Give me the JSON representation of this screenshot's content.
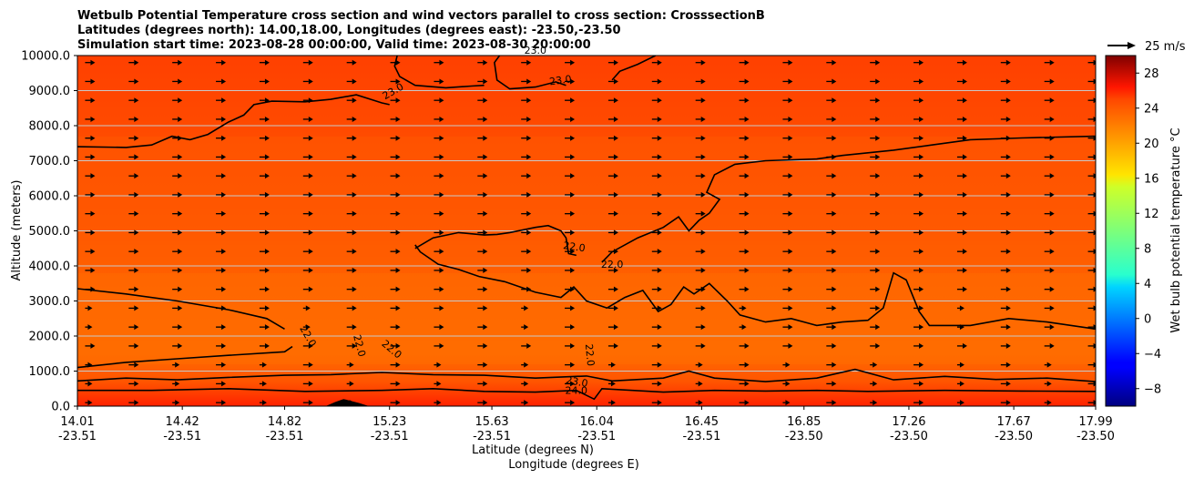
{
  "chart_data": {
    "type": "heatmap",
    "title": [
      "Wetbulb Potential Temperature cross section and wind vectors parallel to cross section: CrosssectionB",
      "Latitudes (degrees north): 14.00,18.00, Longitudes (degrees east): -23.50,-23.50",
      "Simulation start time: 2023-08-28 00:00:00, Valid time: 2023-08-30 20:00:00"
    ],
    "ylabel": "Altitude (meters)",
    "xlabel": "Latitude (degrees N)",
    "xlabel2": "Longitude (degrees E)",
    "ylim": [
      0,
      10000
    ],
    "yticks": [
      {
        "value": 0,
        "label": "0.0"
      },
      {
        "value": 1000,
        "label": "1000.0"
      },
      {
        "value": 2000,
        "label": "2000.0"
      },
      {
        "value": 3000,
        "label": "3000.0"
      },
      {
        "value": 4000,
        "label": "4000.0"
      },
      {
        "value": 5000,
        "label": "5000.0"
      },
      {
        "value": 6000,
        "label": "6000.0"
      },
      {
        "value": 7000,
        "label": "7000.0"
      },
      {
        "value": 8000,
        "label": "8000.0"
      },
      {
        "value": 9000,
        "label": "9000.0"
      },
      {
        "value": 10000,
        "label": "10000.0"
      }
    ],
    "xlim": [
      14.01,
      17.99
    ],
    "xticks": [
      {
        "lat": 14.01,
        "lat_label": "14.01",
        "lon_label": "-23.51"
      },
      {
        "lat": 14.42,
        "lat_label": "14.42",
        "lon_label": "-23.51"
      },
      {
        "lat": 14.82,
        "lat_label": "14.82",
        "lon_label": "-23.51"
      },
      {
        "lat": 15.23,
        "lat_label": "15.23",
        "lon_label": "-23.51"
      },
      {
        "lat": 15.63,
        "lat_label": "15.63",
        "lon_label": "-23.51"
      },
      {
        "lat": 16.04,
        "lat_label": "16.04",
        "lon_label": "-23.51"
      },
      {
        "lat": 16.45,
        "lat_label": "16.45",
        "lon_label": "-23.51"
      },
      {
        "lat": 16.85,
        "lat_label": "16.85",
        "lon_label": "-23.50"
      },
      {
        "lat": 17.26,
        "lat_label": "17.26",
        "lon_label": "-23.50"
      },
      {
        "lat": 17.67,
        "lat_label": "17.67",
        "lon_label": "-23.50"
      },
      {
        "lat": 17.99,
        "lat_label": "17.99",
        "lon_label": "-23.50"
      }
    ],
    "grid": "horizontal",
    "colorbar": {
      "label": "Wet bulb potential temperature °C",
      "range": [
        -10,
        30
      ],
      "ticks": [
        {
          "value": -8,
          "label": "−8"
        },
        {
          "value": -4,
          "label": "−4"
        },
        {
          "value": 0,
          "label": "0"
        },
        {
          "value": 4,
          "label": "4"
        },
        {
          "value": 8,
          "label": "8"
        },
        {
          "value": 12,
          "label": "12"
        },
        {
          "value": 16,
          "label": "16"
        },
        {
          "value": 20,
          "label": "20"
        },
        {
          "value": 24,
          "label": "24"
        },
        {
          "value": 28,
          "label": "28"
        }
      ]
    },
    "quiver_key": {
      "label": "25 m/s",
      "speed": 25
    },
    "wind_vectors": {
      "direction": "parallel to cross section, northward",
      "approx_speed_ms": 6
    },
    "contour_labels": [
      {
        "label": "23.0",
        "lat": 15.25,
        "alt": 8900,
        "rotation": -30
      },
      {
        "label": "23.0",
        "lat": 15.9,
        "alt": 9200,
        "rotation": -8
      },
      {
        "label": "23.0",
        "lat": 15.8,
        "alt": 10050,
        "rotation": 0
      },
      {
        "label": "22.0",
        "lat": 15.95,
        "alt": 4450,
        "rotation": 8
      },
      {
        "label": "22.0",
        "lat": 16.1,
        "alt": 3950,
        "rotation": 0
      },
      {
        "label": "22.0",
        "lat": 14.9,
        "alt": 1950,
        "rotation": 60
      },
      {
        "label": "22.0",
        "lat": 15.1,
        "alt": 1700,
        "rotation": 75
      },
      {
        "label": "22.0",
        "lat": 15.23,
        "alt": 1550,
        "rotation": 40
      },
      {
        "label": "22.0",
        "lat": 16.0,
        "alt": 1450,
        "rotation": 85
      },
      {
        "label": "23.0",
        "lat": 15.96,
        "alt": 600,
        "rotation": 10
      },
      {
        "label": "24.0",
        "lat": 15.96,
        "alt": 350,
        "rotation": 0
      }
    ],
    "contours": [
      {
        "level": 23.0,
        "points": [
          [
            14.01,
            7400
          ],
          [
            14.2,
            7380
          ],
          [
            14.3,
            7450
          ],
          [
            14.38,
            7700
          ],
          [
            14.45,
            7600
          ],
          [
            14.52,
            7750
          ],
          [
            14.6,
            8100
          ],
          [
            14.66,
            8300
          ],
          [
            14.7,
            8600
          ],
          [
            14.77,
            8700
          ],
          [
            14.9,
            8680
          ],
          [
            15.0,
            8750
          ],
          [
            15.1,
            8880
          ],
          [
            15.2,
            8650
          ],
          [
            15.23,
            8600
          ]
        ]
      },
      {
        "level": 23.0,
        "points": [
          [
            15.26,
            10000
          ],
          [
            15.25,
            9700
          ],
          [
            15.27,
            9400
          ],
          [
            15.33,
            9150
          ],
          [
            15.45,
            9080
          ],
          [
            15.55,
            9130
          ],
          [
            15.6,
            9150
          ]
        ]
      },
      {
        "level": 23.0,
        "points": [
          [
            15.66,
            10000
          ],
          [
            15.64,
            9800
          ],
          [
            15.65,
            9300
          ],
          [
            15.7,
            9050
          ],
          [
            15.8,
            9100
          ],
          [
            15.88,
            9250
          ],
          [
            15.92,
            9150
          ]
        ]
      },
      {
        "level": 23.0,
        "points": [
          [
            16.1,
            9300
          ],
          [
            16.13,
            9550
          ],
          [
            16.2,
            9750
          ],
          [
            16.27,
            10000
          ]
        ]
      },
      {
        "level": 22.0,
        "points": [
          [
            15.33,
            4500
          ],
          [
            15.4,
            4800
          ],
          [
            15.5,
            4950
          ],
          [
            15.6,
            4880
          ],
          [
            15.65,
            4900
          ],
          [
            15.7,
            4950
          ],
          [
            15.8,
            5100
          ],
          [
            15.85,
            5150
          ],
          [
            15.9,
            5000
          ],
          [
            15.92,
            4800
          ],
          [
            15.93,
            4350
          ],
          [
            15.96,
            4300
          ]
        ]
      },
      {
        "level": 22.0,
        "points": [
          [
            15.33,
            4600
          ],
          [
            15.35,
            4400
          ],
          [
            15.42,
            4050
          ],
          [
            15.5,
            3900
          ],
          [
            15.58,
            3700
          ],
          [
            15.68,
            3550
          ],
          [
            15.8,
            3250
          ],
          [
            15.9,
            3100
          ],
          [
            15.95,
            3400
          ],
          [
            16.0,
            3000
          ],
          [
            16.08,
            2800
          ],
          [
            16.15,
            3100
          ],
          [
            16.22,
            3300
          ],
          [
            16.28,
            2700
          ],
          [
            16.33,
            2900
          ],
          [
            16.38,
            3400
          ],
          [
            16.42,
            3200
          ],
          [
            16.48,
            3500
          ],
          [
            16.55,
            3000
          ],
          [
            16.6,
            2600
          ],
          [
            16.7,
            2400
          ],
          [
            16.8,
            2500
          ],
          [
            16.9,
            2300
          ],
          [
            17.0,
            2400
          ],
          [
            17.1,
            2450
          ],
          [
            17.16,
            2800
          ],
          [
            17.2,
            3800
          ],
          [
            17.25,
            3600
          ],
          [
            17.3,
            2700
          ],
          [
            17.34,
            2300
          ],
          [
            17.5,
            2300
          ],
          [
            17.65,
            2500
          ],
          [
            17.8,
            2400
          ],
          [
            17.99,
            2200
          ]
        ]
      },
      {
        "level": 22.0,
        "points": [
          [
            16.06,
            4100
          ],
          [
            16.1,
            4400
          ],
          [
            16.2,
            4800
          ],
          [
            16.3,
            5100
          ],
          [
            16.36,
            5400
          ],
          [
            16.4,
            5000
          ],
          [
            16.44,
            5300
          ],
          [
            16.48,
            5500
          ],
          [
            16.52,
            5900
          ],
          [
            16.47,
            6100
          ],
          [
            16.5,
            6600
          ],
          [
            16.58,
            6900
          ],
          [
            16.7,
            7000
          ],
          [
            16.9,
            7050
          ],
          [
            17.0,
            7150
          ],
          [
            17.2,
            7300
          ],
          [
            17.35,
            7450
          ],
          [
            17.5,
            7600
          ],
          [
            17.7,
            7650
          ],
          [
            17.99,
            7700
          ]
        ]
      },
      {
        "level": 22.0,
        "points": [
          [
            14.01,
            3350
          ],
          [
            14.2,
            3200
          ],
          [
            14.4,
            3000
          ],
          [
            14.6,
            2750
          ],
          [
            14.75,
            2500
          ],
          [
            14.82,
            2200
          ]
        ]
      },
      {
        "level": 22.0,
        "points": [
          [
            14.01,
            1100
          ],
          [
            14.2,
            1250
          ],
          [
            14.4,
            1350
          ],
          [
            14.6,
            1450
          ],
          [
            14.82,
            1550
          ],
          [
            14.85,
            1700
          ]
        ]
      },
      {
        "level": 23.0,
        "points": [
          [
            14.01,
            720
          ],
          [
            14.2,
            800
          ],
          [
            14.4,
            750
          ],
          [
            14.6,
            820
          ],
          [
            14.82,
            880
          ],
          [
            15.0,
            900
          ],
          [
            15.2,
            960
          ],
          [
            15.4,
            900
          ],
          [
            15.6,
            880
          ],
          [
            15.8,
            800
          ],
          [
            16.0,
            860
          ],
          [
            16.1,
            720
          ],
          [
            16.3,
            800
          ],
          [
            16.4,
            1000
          ],
          [
            16.5,
            800
          ],
          [
            16.7,
            700
          ],
          [
            16.9,
            800
          ],
          [
            17.05,
            1050
          ],
          [
            17.2,
            750
          ],
          [
            17.4,
            850
          ],
          [
            17.6,
            760
          ],
          [
            17.8,
            800
          ],
          [
            17.99,
            700
          ]
        ]
      },
      {
        "level": 24.0,
        "points": [
          [
            14.01,
            450
          ],
          [
            14.3,
            450
          ],
          [
            14.6,
            500
          ],
          [
            14.9,
            420
          ],
          [
            15.2,
            450
          ],
          [
            15.4,
            500
          ],
          [
            15.6,
            420
          ],
          [
            15.8,
            400
          ],
          [
            15.96,
            450
          ],
          [
            16.03,
            200
          ],
          [
            16.06,
            500
          ],
          [
            16.3,
            400
          ],
          [
            16.5,
            450
          ],
          [
            16.7,
            430
          ],
          [
            16.9,
            450
          ],
          [
            17.1,
            420
          ],
          [
            17.4,
            450
          ],
          [
            17.7,
            430
          ],
          [
            17.99,
            420
          ]
        ]
      }
    ],
    "terrain": {
      "lat_range": [
        14.98,
        15.15
      ],
      "peak_lat": 15.05,
      "peak_alt": 200
    }
  }
}
